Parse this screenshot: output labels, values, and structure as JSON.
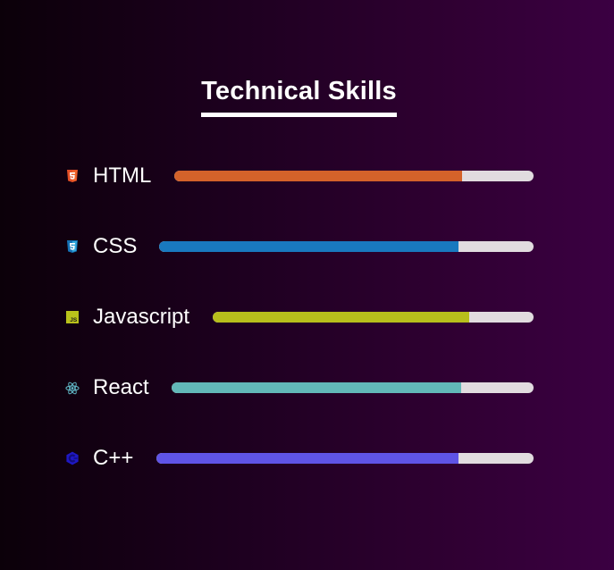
{
  "section": {
    "title": "Technical Skills"
  },
  "skills": [
    {
      "label": "HTML",
      "icon": "html5-icon",
      "color": "#d4622a",
      "percent": 80
    },
    {
      "label": "CSS",
      "icon": "css3-icon",
      "color": "#1979bf",
      "percent": 80
    },
    {
      "label": "Javascript",
      "icon": "javascript-icon",
      "color": "#b7bf1c",
      "percent": 80
    },
    {
      "label": "React",
      "icon": "react-icon",
      "color": "#62b8b8",
      "percent": 80
    },
    {
      "label": "C++",
      "icon": "cplusplus-icon",
      "color": "#5f54e6",
      "percent": 80
    }
  ]
}
